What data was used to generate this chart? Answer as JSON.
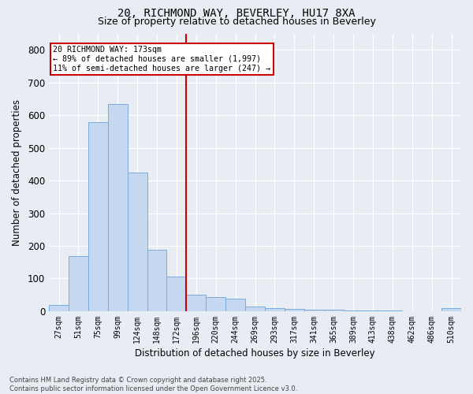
{
  "title_line1": "20, RICHMOND WAY, BEVERLEY, HU17 8XA",
  "title_line2": "Size of property relative to detached houses in Beverley",
  "xlabel": "Distribution of detached houses by size in Beverley",
  "ylabel": "Number of detached properties",
  "categories": [
    "27sqm",
    "51sqm",
    "75sqm",
    "99sqm",
    "124sqm",
    "148sqm",
    "172sqm",
    "196sqm",
    "220sqm",
    "244sqm",
    "269sqm",
    "293sqm",
    "317sqm",
    "341sqm",
    "365sqm",
    "389sqm",
    "413sqm",
    "438sqm",
    "462sqm",
    "486sqm",
    "510sqm"
  ],
  "values": [
    20,
    168,
    578,
    635,
    425,
    188,
    105,
    50,
    43,
    38,
    15,
    10,
    8,
    5,
    5,
    3,
    2,
    2,
    1,
    1,
    10
  ],
  "bar_color": "#c5d8f0",
  "bar_edge_color": "#7aabdc",
  "background_color": "#e8edf4",
  "grid_color": "#ffffff",
  "vline_x": 6.5,
  "vline_color": "#cc0000",
  "annotation_text_line1": "20 RICHMOND WAY: 173sqm",
  "annotation_text_line2": "← 89% of detached houses are smaller (1,997)",
  "annotation_text_line3": "11% of semi-detached houses are larger (247) →",
  "annotation_box_color": "#cc0000",
  "annotation_box_fill": "#ffffff",
  "footer_line1": "Contains HM Land Registry data © Crown copyright and database right 2025.",
  "footer_line2": "Contains public sector information licensed under the Open Government Licence v3.0.",
  "ylim": [
    0,
    850
  ],
  "yticks": [
    0,
    100,
    200,
    300,
    400,
    500,
    600,
    700,
    800
  ]
}
